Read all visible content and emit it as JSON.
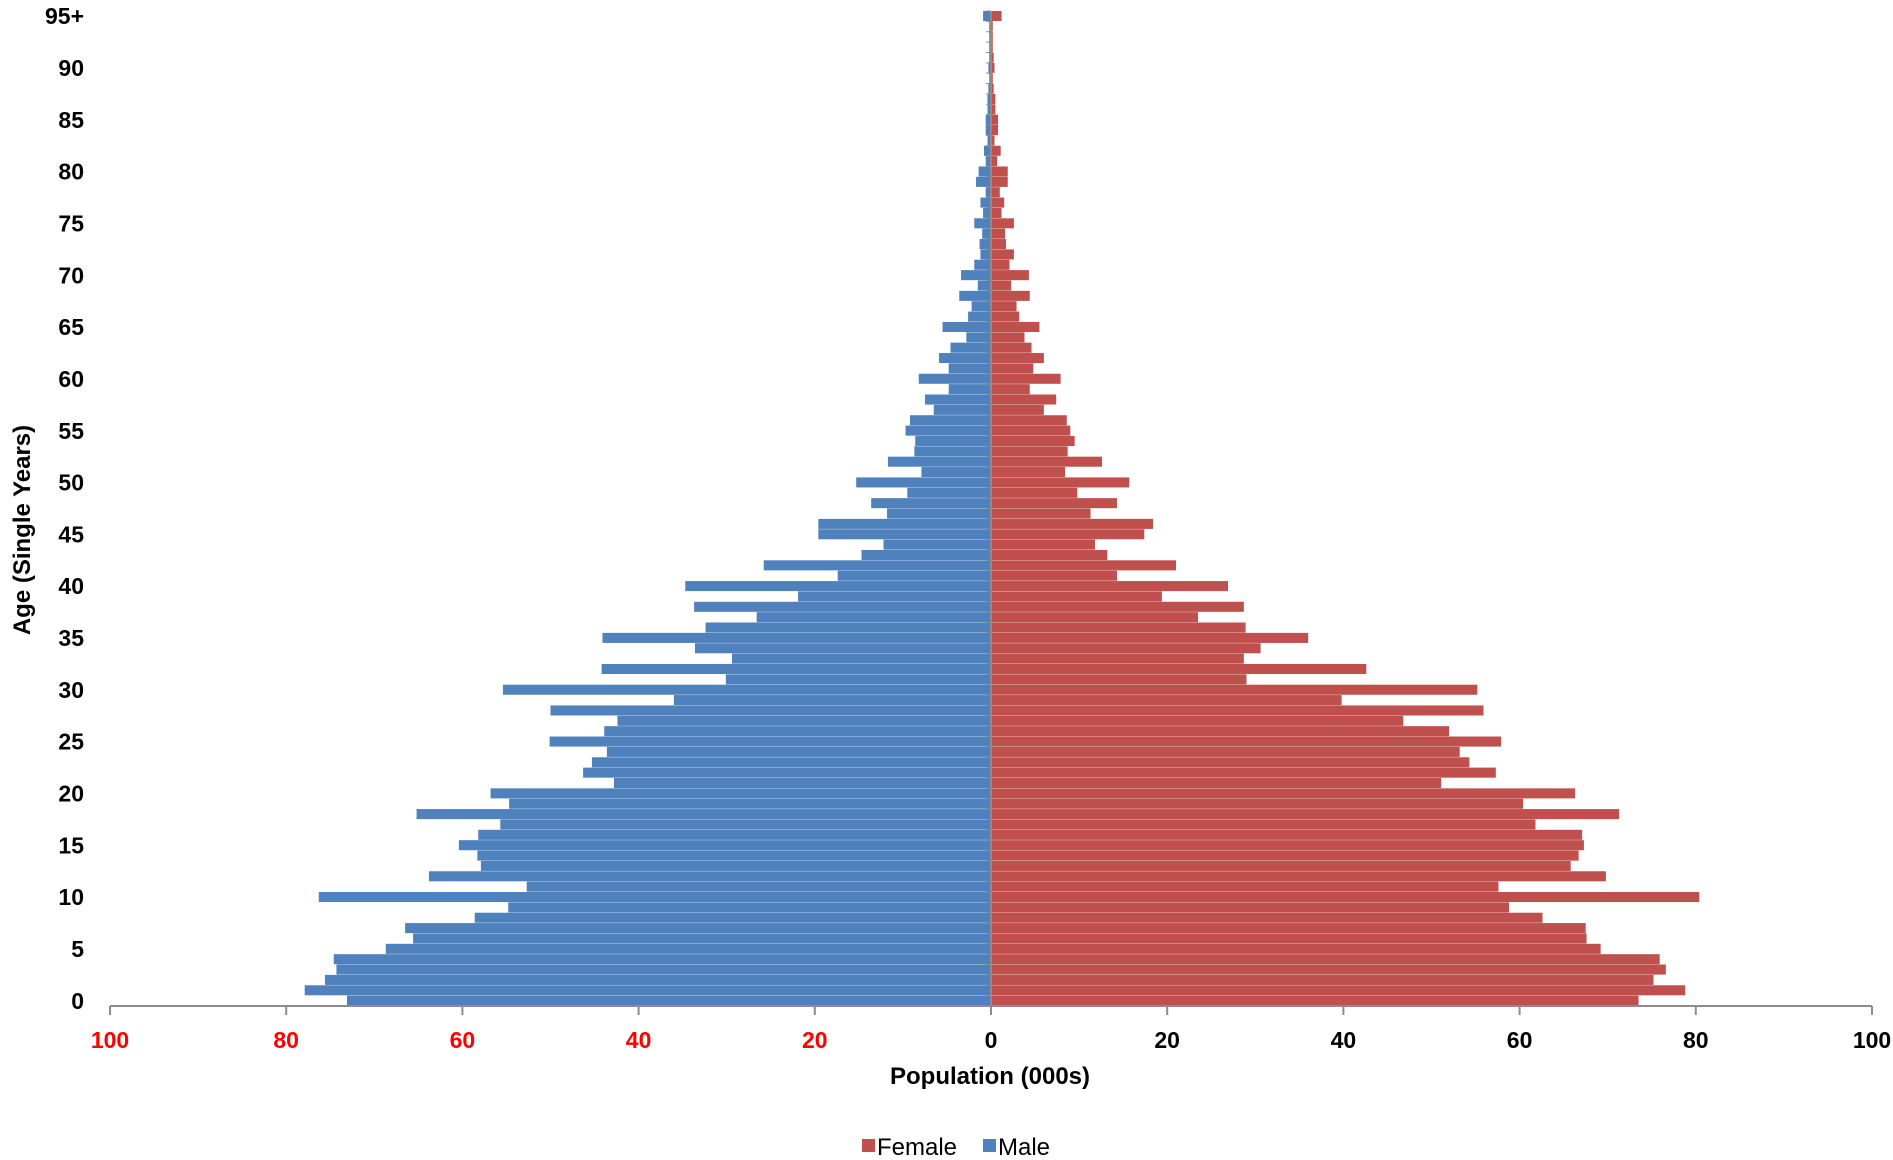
{
  "chart_data": {
    "type": "bar",
    "orientation": "horizontal",
    "subtype": "population-pyramid",
    "xlabel": "Population (000s)",
    "ylabel": "Age (Single Years)",
    "xlim": [
      -100,
      100
    ],
    "x_ticks": [
      {
        "value": -100,
        "label": "100",
        "color": "#ff0000"
      },
      {
        "value": -80,
        "label": "80",
        "color": "#ff0000"
      },
      {
        "value": -60,
        "label": "60",
        "color": "#ff0000"
      },
      {
        "value": -40,
        "label": "40",
        "color": "#ff0000"
      },
      {
        "value": -20,
        "label": "20",
        "color": "#ff0000"
      },
      {
        "value": 0,
        "label": "0",
        "color": "#000000"
      },
      {
        "value": 20,
        "label": "20",
        "color": "#000000"
      },
      {
        "value": 40,
        "label": "40",
        "color": "#000000"
      },
      {
        "value": 60,
        "label": "60",
        "color": "#000000"
      },
      {
        "value": 80,
        "label": "80",
        "color": "#000000"
      },
      {
        "value": 100,
        "label": "100",
        "color": "#000000"
      }
    ],
    "y_ticks": [
      {
        "age": 0,
        "label": "0"
      },
      {
        "age": 5,
        "label": "5"
      },
      {
        "age": 10,
        "label": "10"
      },
      {
        "age": 15,
        "label": "15"
      },
      {
        "age": 20,
        "label": "20"
      },
      {
        "age": 25,
        "label": "25"
      },
      {
        "age": 30,
        "label": "30"
      },
      {
        "age": 35,
        "label": "35"
      },
      {
        "age": 40,
        "label": "40"
      },
      {
        "age": 45,
        "label": "45"
      },
      {
        "age": 50,
        "label": "50"
      },
      {
        "age": 55,
        "label": "55"
      },
      {
        "age": 60,
        "label": "60"
      },
      {
        "age": 65,
        "label": "65"
      },
      {
        "age": 70,
        "label": "70"
      },
      {
        "age": 75,
        "label": "75"
      },
      {
        "age": 80,
        "label": "80"
      },
      {
        "age": 85,
        "label": "85"
      },
      {
        "age": 90,
        "label": "90"
      },
      {
        "age": 95,
        "label": "95+"
      }
    ],
    "grid": false,
    "legend_position": "bottom",
    "colors": {
      "female": "#c0504d",
      "male": "#4f81bd"
    },
    "series": [
      {
        "name": "Female",
        "values": [
          73.5,
          78.8,
          75.2,
          76.6,
          75.9,
          69.2,
          67.6,
          67.5,
          62.6,
          58.8,
          80.4,
          57.6,
          69.8,
          65.8,
          66.7,
          67.3,
          67.1,
          61.8,
          71.3,
          60.4,
          66.3,
          51.1,
          57.3,
          54.3,
          53.2,
          57.9,
          52.0,
          46.8,
          55.9,
          39.8,
          55.2,
          29.0,
          42.6,
          28.7,
          30.6,
          36.0,
          28.9,
          23.5,
          28.7,
          19.4,
          26.9,
          14.3,
          21.0,
          13.2,
          11.8,
          17.4,
          18.4,
          11.3,
          14.3,
          9.8,
          15.7,
          8.4,
          12.6,
          8.7,
          9.5,
          9.0,
          8.6,
          6.0,
          7.4,
          4.4,
          7.9,
          4.8,
          6.0,
          4.6,
          3.8,
          5.5,
          3.2,
          2.9,
          4.4,
          2.3,
          4.3,
          2.1,
          2.6,
          1.7,
          1.6,
          2.6,
          1.2,
          1.5,
          1.0,
          1.9,
          1.9,
          0.7,
          1.1,
          0.4,
          0.8,
          0.8,
          0.5,
          0.5,
          0.3,
          0.2,
          0.4,
          0.3,
          0.2,
          0.2,
          0.2,
          1.2
        ]
      },
      {
        "name": "Male",
        "values": [
          73.1,
          77.9,
          75.6,
          74.3,
          74.6,
          68.7,
          65.6,
          66.5,
          58.6,
          54.8,
          76.3,
          52.7,
          63.8,
          57.9,
          58.3,
          60.4,
          58.2,
          55.7,
          65.2,
          54.7,
          56.8,
          42.8,
          46.3,
          45.3,
          43.6,
          50.1,
          43.9,
          42.4,
          50.0,
          36.0,
          55.4,
          30.1,
          44.2,
          29.4,
          33.6,
          44.1,
          32.4,
          26.6,
          33.7,
          21.9,
          34.7,
          17.4,
          25.8,
          14.7,
          12.2,
          19.6,
          19.6,
          11.8,
          13.6,
          9.5,
          15.3,
          7.9,
          11.7,
          8.7,
          8.6,
          9.7,
          9.2,
          6.5,
          7.5,
          4.8,
          8.2,
          4.8,
          5.9,
          4.6,
          2.8,
          5.5,
          2.6,
          2.2,
          3.6,
          1.5,
          3.4,
          1.9,
          1.2,
          1.3,
          1.0,
          1.9,
          0.9,
          1.2,
          0.6,
          1.7,
          1.4,
          0.6,
          0.8,
          0.4,
          0.6,
          0.6,
          0.4,
          0.4,
          0.3,
          0.2,
          0.3,
          0.2,
          0.2,
          0.2,
          0.2,
          0.9
        ]
      }
    ]
  },
  "legend": {
    "female_label": "Female",
    "male_label": "Male"
  }
}
